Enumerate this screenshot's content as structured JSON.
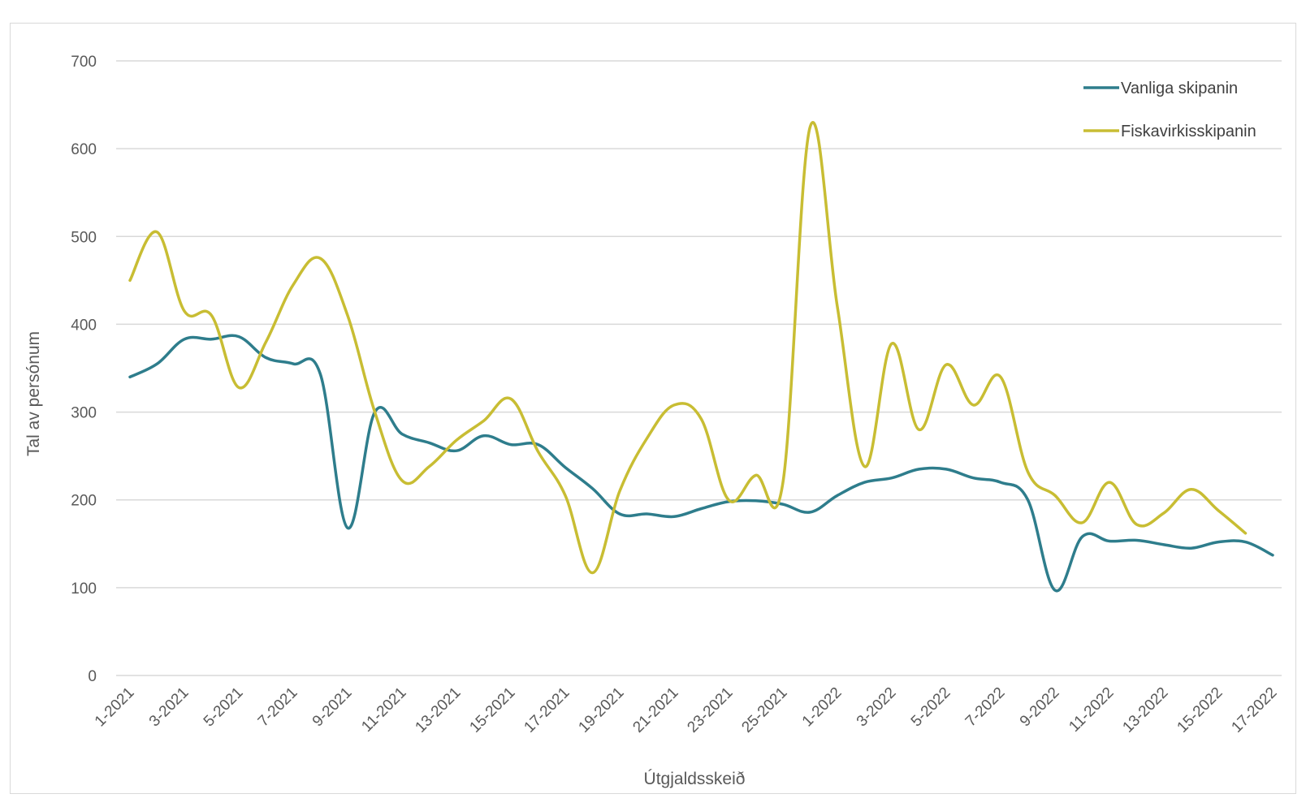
{
  "chart_data": {
    "type": "line",
    "title": "",
    "xlabel": "Útgjaldsskeið",
    "ylabel": "Tal av persónum",
    "ylim": [
      0,
      700
    ],
    "yticks": [
      0,
      100,
      200,
      300,
      400,
      500,
      600,
      700
    ],
    "grid": true,
    "legend": "top-right",
    "x_tick_labels": [
      "1-2021",
      "3-2021",
      "5-2021",
      "7-2021",
      "9-2021",
      "11-2021",
      "13-2021",
      "15-2021",
      "17-2021",
      "19-2021",
      "21-2021",
      "23-2021",
      "25-2021",
      "1-2022",
      "3-2022",
      "5-2022",
      "7-2022",
      "9-2022",
      "11-2022",
      "13-2022",
      "15-2022",
      "17-2022"
    ],
    "x_periods": [
      "1-2021",
      "2-2021",
      "3-2021",
      "4-2021",
      "5-2021",
      "6-2021",
      "7-2021",
      "8-2021",
      "9-2021",
      "10-2021",
      "11-2021",
      "12-2021",
      "13-2021",
      "14-2021",
      "15-2021",
      "16-2021",
      "17-2021",
      "18-2021",
      "19-2021",
      "20-2021",
      "21-2021",
      "22-2021",
      "23-2021",
      "24-2021",
      "25-2021",
      "26-2021",
      "1-2022",
      "2-2022",
      "3-2022",
      "4-2022",
      "5-2022",
      "6-2022",
      "7-2022",
      "8-2022",
      "9-2022",
      "10-2022",
      "11-2022",
      "12-2022",
      "13-2022",
      "14-2022",
      "15-2022",
      "16-2022",
      "17-2022"
    ],
    "series": [
      {
        "name": "Vanliga skipanin",
        "color": "#2e7d8c",
        "values": [
          340,
          355,
          383,
          383,
          386,
          362,
          355,
          343,
          168,
          300,
          275,
          265,
          256,
          273,
          263,
          263,
          237,
          213,
          184,
          184,
          181,
          190,
          198,
          199,
          195,
          186,
          205,
          220,
          225,
          235,
          235,
          225,
          220,
          200,
          97,
          158,
          153,
          154,
          149,
          145,
          152,
          152,
          137
        ]
      },
      {
        "name": "Fiskavirkisskipanin",
        "color": "#c8bd33",
        "values": [
          450,
          505,
          415,
          410,
          328,
          380,
          445,
          475,
          410,
          300,
          222,
          238,
          268,
          290,
          315,
          255,
          205,
          117,
          210,
          270,
          308,
          292,
          200,
          228,
          220,
          625,
          420,
          238,
          378,
          280,
          354,
          308,
          340,
          232,
          205,
          174,
          220,
          172,
          185,
          212,
          188,
          162,
          null
        ]
      }
    ]
  }
}
